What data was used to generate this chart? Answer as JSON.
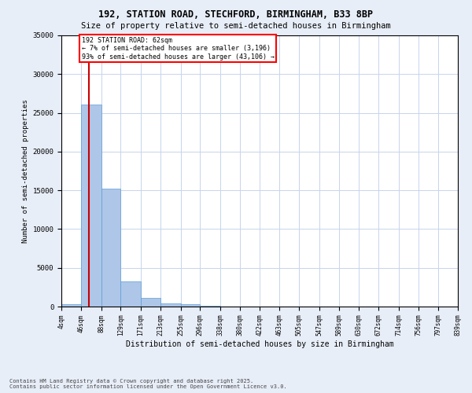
{
  "title1": "192, STATION ROAD, STECHFORD, BIRMINGHAM, B33 8BP",
  "title2": "Size of property relative to semi-detached houses in Birmingham",
  "xlabel": "Distribution of semi-detached houses by size in Birmingham",
  "ylabel": "Number of semi-detached properties",
  "footnote": "Contains HM Land Registry data © Crown copyright and database right 2025.\nContains public sector information licensed under the Open Government Licence v3.0.",
  "bins": [
    "4sqm",
    "46sqm",
    "88sqm",
    "129sqm",
    "171sqm",
    "213sqm",
    "255sqm",
    "296sqm",
    "338sqm",
    "380sqm",
    "422sqm",
    "463sqm",
    "505sqm",
    "547sqm",
    "589sqm",
    "630sqm",
    "672sqm",
    "714sqm",
    "756sqm",
    "797sqm",
    "839sqm"
  ],
  "bin_edges": [
    4,
    46,
    88,
    129,
    171,
    213,
    255,
    296,
    338,
    380,
    422,
    463,
    505,
    547,
    589,
    630,
    672,
    714,
    756,
    797,
    839
  ],
  "values": [
    350,
    26100,
    15200,
    3200,
    1100,
    420,
    280,
    100,
    0,
    0,
    0,
    0,
    0,
    0,
    0,
    0,
    0,
    0,
    0,
    0
  ],
  "bar_color": "#aec6e8",
  "bar_edge_color": "#5a9fd4",
  "vline_x": 62,
  "vline_color": "#cc0000",
  "annotation_text": "192 STATION ROAD: 62sqm\n← 7% of semi-detached houses are smaller (3,196)\n93% of semi-detached houses are larger (43,106) →",
  "ylim": [
    0,
    35000
  ],
  "yticks": [
    0,
    5000,
    10000,
    15000,
    20000,
    25000,
    30000,
    35000
  ],
  "bg_color": "#e8eef8",
  "plot_bg_color": "#ffffff",
  "grid_color": "#c8d4ec"
}
